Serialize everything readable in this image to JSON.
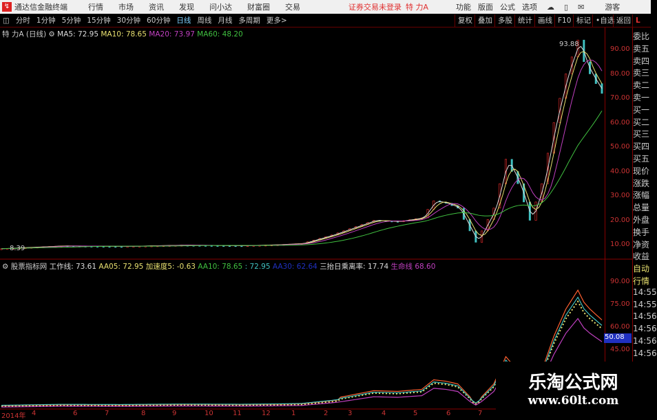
{
  "titlebar": {
    "app": "通达信金融终端",
    "menus": [
      "行情",
      "市场",
      "资讯",
      "发现",
      "问小达",
      "财富圈",
      "交易"
    ],
    "login_status": "证券交易未登录",
    "stock": "特 力A",
    "right_menus": [
      "功能",
      "版面",
      "公式",
      "选项"
    ],
    "guest": "游客"
  },
  "toolbar": {
    "periods": [
      "分时",
      "1分钟",
      "5分钟",
      "15分钟",
      "30分钟",
      "60分钟",
      "日线",
      "周线",
      "月线",
      "多周期",
      "更多>"
    ],
    "active": "日线",
    "right_buttons": [
      "复权",
      "叠加",
      "多股",
      "统计",
      "画线",
      "F10",
      "标记",
      "•自选",
      "返回"
    ]
  },
  "main_chart": {
    "title": "特 力A (日线)",
    "ma": [
      {
        "label": "MA5: 72.95",
        "color": "#dddddd"
      },
      {
        "label": "MA10: 78.65",
        "color": "#e8e070"
      },
      {
        "label": "MA20: 73.97",
        "color": "#c040c0"
      },
      {
        "label": "MA60: 48.20",
        "color": "#40c040"
      }
    ],
    "y_ticks": [
      "90.00",
      "80.00",
      "70.00",
      "60.00",
      "50.00",
      "40.00",
      "30.00",
      "20.00",
      "10.00"
    ],
    "high_label": "93.88",
    "low_label": "8.39"
  },
  "indicator": {
    "name": "股票指标网",
    "items": [
      {
        "label": "工作线: 73.61",
        "color": "#dddddd"
      },
      {
        "label": "AA05: 72.95",
        "color": "#e8e070"
      },
      {
        "label": "加速度5: -0.63",
        "color": "#e8e070"
      },
      {
        "label": "AA10: 78.65",
        "color": "#40c040"
      },
      {
        "label": ": 72.95",
        "color": "#40c0c0"
      },
      {
        "label": "AA30: 62.64",
        "color": "#2030c0"
      },
      {
        "label": "三抬日乘离率: 17.74",
        "color": "#dddddd"
      },
      {
        "label": "生命线",
        "color": "#c040c0"
      },
      {
        "label": "68.60",
        "color": "#c040c0"
      }
    ],
    "y_ticks": [
      "90.00",
      "75.00",
      "60.00",
      "45.00"
    ],
    "current": "50.08"
  },
  "right_panel": {
    "labels": [
      "委比",
      "卖五",
      "卖四",
      "卖三",
      "卖二",
      "卖一",
      "买一",
      "买二",
      "买三",
      "买四",
      "买五",
      "现价",
      "涨跌",
      "涨幅",
      "总量",
      "外盘",
      "换手",
      "净资",
      "收益",
      "自动",
      "行情",
      "14:55",
      "14:55",
      "14:56",
      "14:56",
      "14:56",
      "14:56"
    ]
  },
  "time_axis": [
    "2014年",
    "4",
    "6",
    "7",
    "8",
    "9",
    "10",
    "11",
    "12",
    "1",
    "2",
    "3",
    "4",
    "5",
    "6",
    "7"
  ],
  "watermark": {
    "line1": "乐淘公式网",
    "line2": "www.60lt.com"
  },
  "chart_data": {
    "type": "line",
    "series": [
      {
        "name": "特 力A",
        "x_index": [
          0,
          10,
          20,
          30,
          40,
          46,
          50,
          55,
          62,
          66,
          70,
          72,
          74,
          76,
          79,
          82,
          84,
          86,
          88,
          90,
          92,
          94,
          96,
          97,
          98,
          99,
          100
        ],
        "values": [
          8.39,
          9.5,
          9.3,
          9.8,
          9.6,
          10,
          10.5,
          14,
          20,
          19.5,
          21,
          28,
          27,
          25,
          11,
          25,
          45,
          35,
          20,
          35,
          60,
          80,
          93.88,
          85,
          80,
          76,
          72
        ]
      }
    ],
    "ylim": [
      5,
      95
    ]
  },
  "colors": {
    "up": "#ff3030",
    "axis": "#cc3333",
    "accent": "#7fd0ff"
  }
}
